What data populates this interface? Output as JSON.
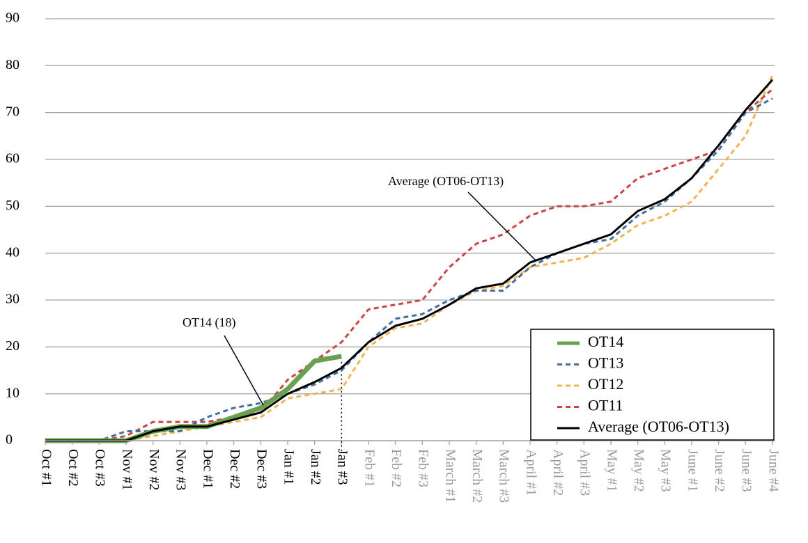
{
  "chart_data": {
    "type": "line",
    "categories": [
      "Oct #1",
      "Oct #2",
      "Oct #3",
      "Nov #1",
      "Nov #2",
      "Nov #3",
      "Dec #1",
      "Dec #2",
      "Dec #3",
      "Jan #1",
      "Jan #2",
      "Jan #3",
      "Feb #1",
      "Feb #2",
      "Feb #3",
      "March #1",
      "March #2",
      "March #3",
      "April #1",
      "April #2",
      "April #3",
      "May #1",
      "May #2",
      "May #3",
      "June #1",
      "June #2",
      "June #3",
      "June #4"
    ],
    "current": "Jan #3",
    "label_color": "#000000",
    "future_label_color": "#9a9a9a",
    "series": [
      {
        "name": "OT14",
        "color": "#6aa150",
        "width": 7,
        "dash": false,
        "values": [
          0,
          0,
          0,
          0,
          2,
          3,
          3,
          5,
          7,
          11,
          17,
          18,
          null,
          null,
          null,
          null,
          null,
          null,
          null,
          null,
          null,
          null,
          null,
          null,
          null,
          null,
          null,
          null
        ]
      },
      {
        "name": "OT13",
        "color": "#3f6f9f",
        "width": 3,
        "dash": true,
        "values": [
          0,
          0,
          0,
          2,
          2,
          2,
          5,
          7,
          8,
          10,
          12,
          15,
          21,
          26,
          27,
          30,
          32,
          32,
          37,
          40,
          42,
          43,
          48,
          51,
          56,
          62,
          70,
          73
        ]
      },
      {
        "name": "OT12",
        "color": "#f0b450",
        "width": 3,
        "dash": true,
        "values": [
          0,
          0,
          0,
          0,
          1,
          2,
          3,
          4,
          5,
          9,
          10,
          11,
          20,
          24,
          25,
          29,
          32,
          33,
          37,
          38,
          39,
          42,
          46,
          48,
          51,
          58,
          65,
          78
        ]
      },
      {
        "name": "OT11",
        "color": "#cc4444",
        "width": 3,
        "dash": true,
        "values": [
          0,
          0,
          0,
          1,
          4,
          4,
          4,
          5,
          6,
          13,
          17,
          21,
          28,
          29,
          30,
          37,
          42,
          44,
          48,
          50,
          50,
          51,
          56,
          58,
          60,
          62,
          70,
          75
        ]
      },
      {
        "name": "Average (OT06-OT13)",
        "color": "#000000",
        "width": 3,
        "dash": false,
        "values": [
          0,
          0,
          0,
          0,
          2,
          3,
          3,
          4.5,
          6,
          10,
          12.5,
          15.5,
          21,
          24.5,
          26,
          29,
          32.5,
          33.5,
          38,
          40,
          42,
          44,
          49,
          51.5,
          56,
          63,
          70.5,
          77
        ]
      }
    ],
    "draw_order": [
      2,
      3,
      1,
      0,
      4
    ],
    "annotations": [
      {
        "text": "OT14 (18)"
      },
      {
        "text": "Average (OT06-OT13)"
      }
    ],
    "ylim": [
      0,
      90
    ],
    "yticks": [
      0,
      10,
      20,
      30,
      40,
      50,
      60,
      70,
      80,
      90
    ],
    "grid": true,
    "legend": "bottom-right"
  }
}
